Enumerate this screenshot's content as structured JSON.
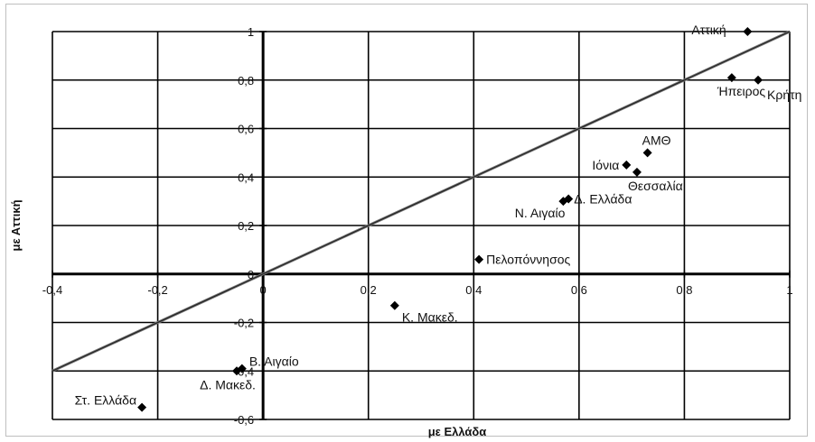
{
  "chart_data": {
    "type": "scatter",
    "title": "",
    "xlabel": "με Ελλάδα",
    "ylabel": "με Αττική",
    "xlim": [
      -0.4,
      1
    ],
    "ylim": [
      -0.6,
      1
    ],
    "x_ticks": [
      -0.4,
      -0.2,
      0,
      0.2,
      0.4,
      0.6,
      0.8,
      1
    ],
    "y_ticks": [
      -0.6,
      -0.4,
      -0.2,
      0,
      0.2,
      0.4,
      0.6,
      0.8,
      1
    ],
    "x_tick_labels": [
      "-0,4",
      "-0,2",
      "0",
      "0,2",
      "0,4",
      "0,6",
      "0,8",
      "1"
    ],
    "y_tick_labels": [
      "-0,6",
      "-0,4",
      "-0,2",
      "0",
      "0,2",
      "0,4",
      "0,6",
      "0,8",
      "1"
    ],
    "grid": true,
    "reference_line": {
      "x": [
        -0.4,
        1
      ],
      "y": [
        -0.4,
        1
      ]
    },
    "points": [
      {
        "label": "Αττική",
        "x": 0.92,
        "y": 1.0
      },
      {
        "label": "Ήπειρος",
        "x": 0.89,
        "y": 0.81
      },
      {
        "label": "Κρήτη",
        "x": 0.94,
        "y": 0.8
      },
      {
        "label": "ΑΜΘ",
        "x": 0.73,
        "y": 0.5
      },
      {
        "label": "Ιόνια",
        "x": 0.69,
        "y": 0.45
      },
      {
        "label": "Θεσσαλία",
        "x": 0.71,
        "y": 0.42
      },
      {
        "label": "Δ. Ελλάδα",
        "x": 0.58,
        "y": 0.31
      },
      {
        "label": "Ν. Αιγαίο",
        "x": 0.57,
        "y": 0.3
      },
      {
        "label": "Πελοπόννησος",
        "x": 0.41,
        "y": 0.06
      },
      {
        "label": "Κ. Μακεδ.",
        "x": 0.25,
        "y": -0.13
      },
      {
        "label": "Β. Αιγαίο",
        "x": -0.04,
        "y": -0.39
      },
      {
        "label": "Δ. Μακεδ.",
        "x": -0.05,
        "y": -0.4
      },
      {
        "label": "Στ. Ελλάδα",
        "x": -0.23,
        "y": -0.55
      }
    ]
  }
}
